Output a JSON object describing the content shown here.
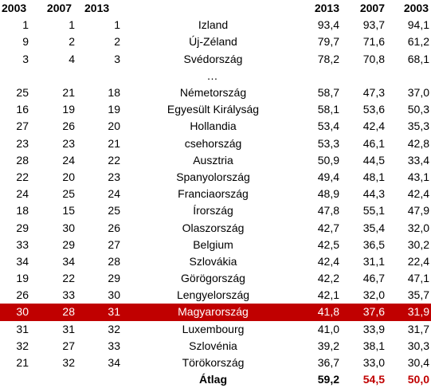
{
  "header": {
    "col_a": "2003",
    "col_b": "2007",
    "col_c": "2013",
    "col_d": "2013",
    "col_e": "2007",
    "col_f": "2003"
  },
  "rows": [
    {
      "r2003": "1",
      "r2007": "1",
      "r2013": "1",
      "country": "Izland",
      "v2013": "93,4",
      "v2007": "93,7",
      "v2003": "94,1"
    },
    {
      "r2003": "9",
      "r2007": "2",
      "r2013": "2",
      "country": "Új-Zéland",
      "v2013": "79,7",
      "v2007": "71,6",
      "v2003": "61,2"
    },
    {
      "r2003": "3",
      "r2007": "4",
      "r2013": "3",
      "country": "Svédország",
      "v2013": "78,2",
      "v2007": "70,8",
      "v2003": "68,1"
    },
    {
      "r2003": "",
      "r2007": "",
      "r2013": "",
      "country": "…",
      "v2013": "",
      "v2007": "",
      "v2003": ""
    },
    {
      "r2003": "25",
      "r2007": "21",
      "r2013": "18",
      "country": "Németország",
      "v2013": "58,7",
      "v2007": "47,3",
      "v2003": "37,0"
    },
    {
      "r2003": "16",
      "r2007": "19",
      "r2013": "19",
      "country": "Egyesült Királyság",
      "v2013": "58,1",
      "v2007": "53,6",
      "v2003": "50,3"
    },
    {
      "r2003": "27",
      "r2007": "26",
      "r2013": "20",
      "country": "Hollandia",
      "v2013": "53,4",
      "v2007": "42,4",
      "v2003": "35,3"
    },
    {
      "r2003": "23",
      "r2007": "23",
      "r2013": "21",
      "country": "csehország",
      "v2013": "53,3",
      "v2007": "46,1",
      "v2003": "42,8"
    },
    {
      "r2003": "28",
      "r2007": "24",
      "r2013": "22",
      "country": "Ausztria",
      "v2013": "50,9",
      "v2007": "44,5",
      "v2003": "33,4"
    },
    {
      "r2003": "22",
      "r2007": "20",
      "r2013": "23",
      "country": "Spanyolország",
      "v2013": "49,4",
      "v2007": "48,1",
      "v2003": "43,1"
    },
    {
      "r2003": "24",
      "r2007": "25",
      "r2013": "24",
      "country": "Franciaország",
      "v2013": "48,9",
      "v2007": "44,3",
      "v2003": "42,4"
    },
    {
      "r2003": "18",
      "r2007": "15",
      "r2013": "25",
      "country": "Írország",
      "v2013": "47,8",
      "v2007": "55,1",
      "v2003": "47,9"
    },
    {
      "r2003": "29",
      "r2007": "30",
      "r2013": "26",
      "country": "Olaszország",
      "v2013": "42,7",
      "v2007": "35,4",
      "v2003": "32,0"
    },
    {
      "r2003": "33",
      "r2007": "29",
      "r2013": "27",
      "country": "Belgium",
      "v2013": "42,5",
      "v2007": "36,5",
      "v2003": "30,2"
    },
    {
      "r2003": "34",
      "r2007": "34",
      "r2013": "28",
      "country": "Szlovákia",
      "v2013": "42,4",
      "v2007": "31,1",
      "v2003": "22,4"
    },
    {
      "r2003": "19",
      "r2007": "22",
      "r2013": "29",
      "country": "Görögország",
      "v2013": "42,2",
      "v2007": "46,7",
      "v2003": "47,1"
    },
    {
      "r2003": "26",
      "r2007": "33",
      "r2013": "30",
      "country": "Lengyelország",
      "v2013": "42,1",
      "v2007": "32,0",
      "v2003": "35,7"
    },
    {
      "r2003": "30",
      "r2007": "28",
      "r2013": "31",
      "country": "Magyarország",
      "v2013": "41,8",
      "v2007": "37,6",
      "v2003": "31,9"
    },
    {
      "r2003": "31",
      "r2007": "31",
      "r2013": "32",
      "country": "Luxembourg",
      "v2013": "41,0",
      "v2007": "33,9",
      "v2003": "31,7"
    },
    {
      "r2003": "32",
      "r2007": "27",
      "r2013": "33",
      "country": "Szlovénia",
      "v2013": "39,2",
      "v2007": "38,1",
      "v2003": "30,3"
    },
    {
      "r2003": "21",
      "r2007": "32",
      "r2013": "34",
      "country": "Törökország",
      "v2013": "36,7",
      "v2007": "33,0",
      "v2003": "30,4"
    }
  ],
  "average": {
    "label": "Átlag",
    "v2013": "59,2",
    "v2007": "54,5",
    "v2003": "50,0"
  },
  "colors": {
    "highlight_bg": "#c00000",
    "highlight_text": "#ffffff",
    "average_accent": "#c00000"
  }
}
